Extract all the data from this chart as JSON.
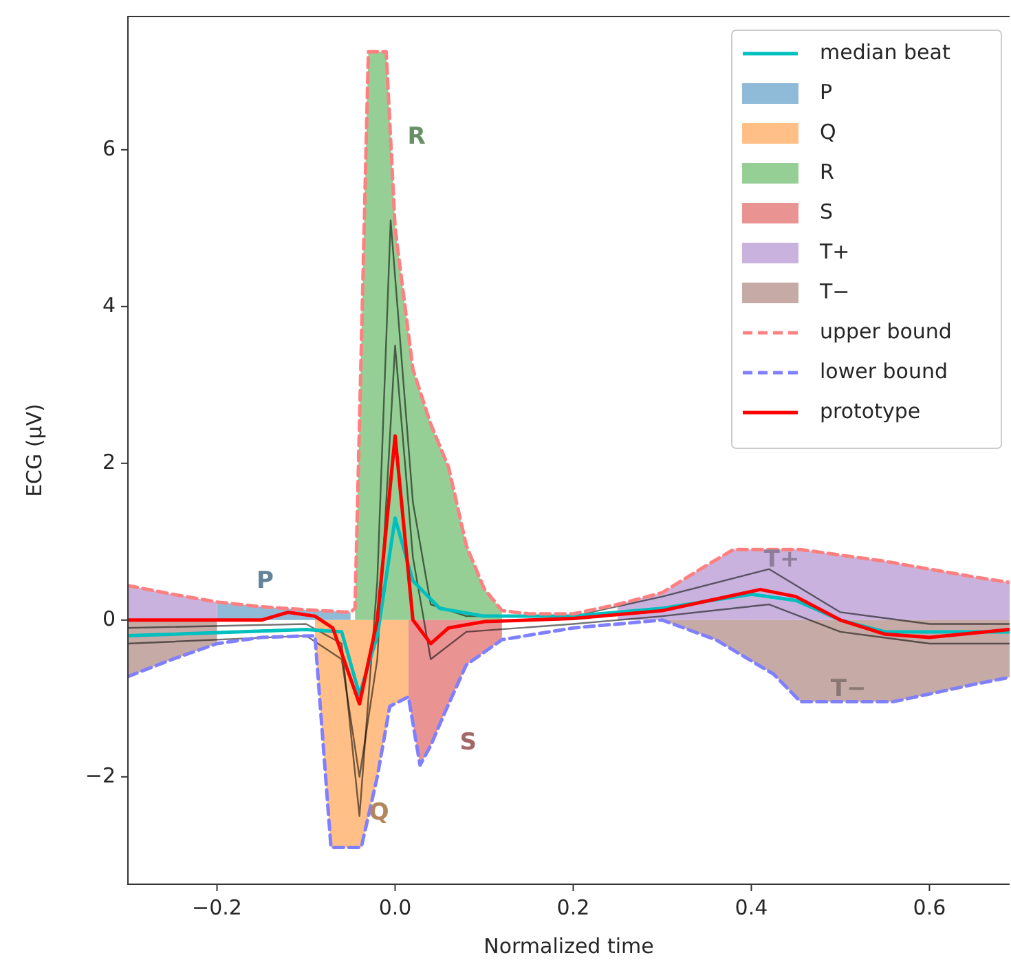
{
  "chart_data": {
    "type": "line",
    "xlabel": "Normalized time",
    "ylabel": "ECG (μV)",
    "xlim": [
      -0.3,
      0.69
    ],
    "ylim": [
      -3.37,
      7.7
    ],
    "xticks": [
      {
        "value": -0.2,
        "label": "−0.2"
      },
      {
        "value": 0,
        "label": "0.0"
      },
      {
        "value": 0.2,
        "label": "0.2"
      },
      {
        "value": 0.4,
        "label": "0.4"
      },
      {
        "value": 0.6,
        "label": "0.6"
      }
    ],
    "yticks": [
      {
        "value": -2,
        "label": "−2"
      },
      0,
      2,
      4,
      6
    ],
    "legend": "top right",
    "series": [
      {
        "color": "#000000",
        "x": [
          -0.3,
          -0.1,
          -0.06,
          -0.04,
          -0.02,
          -0.005,
          0.02,
          0.04,
          0.08,
          0.2,
          0.3,
          0.42,
          0.5,
          0.6,
          0.69
        ],
        "values": [
          -0.1,
          -0.05,
          -0.3,
          -2.5,
          0.5,
          5.1,
          1.5,
          0.2,
          0.05,
          0.05,
          0.3,
          0.65,
          0.1,
          -0.05,
          -0.05
        ]
      },
      {
        "color": "#000000",
        "x": [
          -0.3,
          -0.1,
          -0.06,
          -0.04,
          -0.02,
          0.0,
          0.02,
          0.04,
          0.08,
          0.2,
          0.3,
          0.42,
          0.5,
          0.6,
          0.69
        ],
        "values": [
          -0.3,
          -0.2,
          -0.5,
          -2.0,
          -0.5,
          3.5,
          0.8,
          -0.5,
          -0.15,
          -0.05,
          0.05,
          0.2,
          -0.15,
          -0.3,
          -0.3
        ]
      },
      {
        "name": "median beat",
        "color": "#00bfbf",
        "x": [
          -0.3,
          -0.1,
          -0.06,
          -0.04,
          -0.02,
          0.0,
          0.02,
          0.05,
          0.1,
          0.2,
          0.3,
          0.4,
          0.45,
          0.5,
          0.55,
          0.69
        ],
        "values": [
          -0.2,
          -0.12,
          -0.15,
          -0.95,
          -0.2,
          1.3,
          0.5,
          0.15,
          0.05,
          0.05,
          0.15,
          0.33,
          0.25,
          0.0,
          -0.15,
          -0.15
        ]
      },
      {
        "type": "area",
        "name": "P",
        "color": "#8fbbd9",
        "x": [
          -0.2,
          -0.15,
          -0.1,
          -0.05
        ],
        "values": [
          0.23,
          0.17,
          0.13,
          0.1
        ]
      },
      {
        "type": "area",
        "name": "Q",
        "color": "#ffbf86",
        "x": [
          -0.09,
          -0.072,
          -0.038,
          -0.02,
          -0.006,
          0.015
        ],
        "values": [
          -0.2,
          -2.9,
          -2.9,
          -2.0,
          -1.1,
          -0.98
        ]
      },
      {
        "type": "area",
        "name": "R",
        "color": "#95cf95",
        "x": [
          -0.045,
          -0.03,
          -0.01,
          0.0,
          0.02,
          0.04,
          0.06,
          0.08,
          0.1,
          0.12
        ],
        "values": [
          0.15,
          7.25,
          7.25,
          5.0,
          3.2,
          2.5,
          1.95,
          0.95,
          0.4,
          0.12
        ]
      },
      {
        "type": "area",
        "name": "S",
        "color": "#ea9393",
        "x": [
          0.015,
          0.028,
          0.04,
          0.055,
          0.08,
          0.12
        ],
        "values": [
          -0.98,
          -1.85,
          -1.6,
          -1.2,
          -0.57,
          -0.25
        ]
      },
      {
        "type": "area",
        "name": "T+",
        "color": "#c9b3de",
        "x": [
          -0.3,
          -0.25,
          -0.2,
          0.0,
          0.25,
          0.3,
          0.35,
          0.38,
          0.455,
          0.55,
          0.65,
          0.69
        ],
        "values": [
          0.44,
          0.33,
          0.23,
          null,
          0.2,
          0.35,
          0.7,
          0.9,
          0.9,
          0.75,
          0.55,
          0.48
        ]
      },
      {
        "type": "area",
        "name": "T−",
        "color": "#c5aaa5",
        "x": [
          -0.3,
          -0.25,
          -0.2,
          0.0,
          0.3,
          0.36,
          0.425,
          0.455,
          0.56,
          0.65,
          0.69
        ],
        "values": [
          -0.72,
          -0.5,
          -0.3,
          null,
          0.0,
          -0.25,
          -0.69,
          -1.04,
          -1.04,
          -0.82,
          -0.73
        ]
      },
      {
        "name": "upper bound",
        "color": "#ff8080",
        "line_style": "dashed",
        "x": [
          -0.3,
          -0.25,
          -0.2,
          -0.15,
          -0.1,
          -0.05,
          -0.045,
          -0.03,
          -0.01,
          0.0,
          0.02,
          0.04,
          0.06,
          0.08,
          0.1,
          0.12,
          0.15,
          0.2,
          0.25,
          0.3,
          0.35,
          0.38,
          0.455,
          0.55,
          0.65,
          0.69
        ],
        "values": [
          0.44,
          0.33,
          0.23,
          0.17,
          0.13,
          0.1,
          0.15,
          7.25,
          7.25,
          5.0,
          3.2,
          2.5,
          1.95,
          0.95,
          0.4,
          0.12,
          0.08,
          0.08,
          0.2,
          0.35,
          0.7,
          0.9,
          0.9,
          0.75,
          0.55,
          0.48
        ]
      },
      {
        "name": "lower bound",
        "color": "#8080ff",
        "line_style": "dashed",
        "x": [
          -0.3,
          -0.25,
          -0.2,
          -0.15,
          -0.09,
          -0.072,
          -0.038,
          -0.02,
          -0.006,
          0.015,
          0.028,
          0.04,
          0.055,
          0.08,
          0.12,
          0.2,
          0.3,
          0.36,
          0.425,
          0.455,
          0.56,
          0.65,
          0.69
        ],
        "values": [
          -0.72,
          -0.5,
          -0.3,
          -0.22,
          -0.2,
          -2.9,
          -2.9,
          -2.0,
          -1.1,
          -0.98,
          -1.85,
          -1.6,
          -1.2,
          -0.57,
          -0.25,
          -0.1,
          0.0,
          -0.25,
          -0.69,
          -1.04,
          -1.04,
          -0.82,
          -0.73
        ]
      },
      {
        "name": "prototype",
        "color": "#ff0000",
        "x": [
          -0.3,
          -0.15,
          -0.12,
          -0.09,
          -0.07,
          -0.04,
          -0.02,
          0.0,
          0.02,
          0.04,
          0.06,
          0.1,
          0.2,
          0.3,
          0.41,
          0.45,
          0.5,
          0.55,
          0.6,
          0.69
        ],
        "values": [
          0.0,
          0.0,
          0.1,
          0.05,
          -0.1,
          -1.07,
          0.0,
          2.35,
          0.0,
          -0.3,
          -0.1,
          -0.02,
          0.02,
          0.12,
          0.39,
          0.3,
          0.0,
          -0.18,
          -0.22,
          -0.12
        ]
      }
    ],
    "annotations": [
      "P",
      "Q",
      "R",
      "S",
      "T+",
      "T−"
    ]
  }
}
